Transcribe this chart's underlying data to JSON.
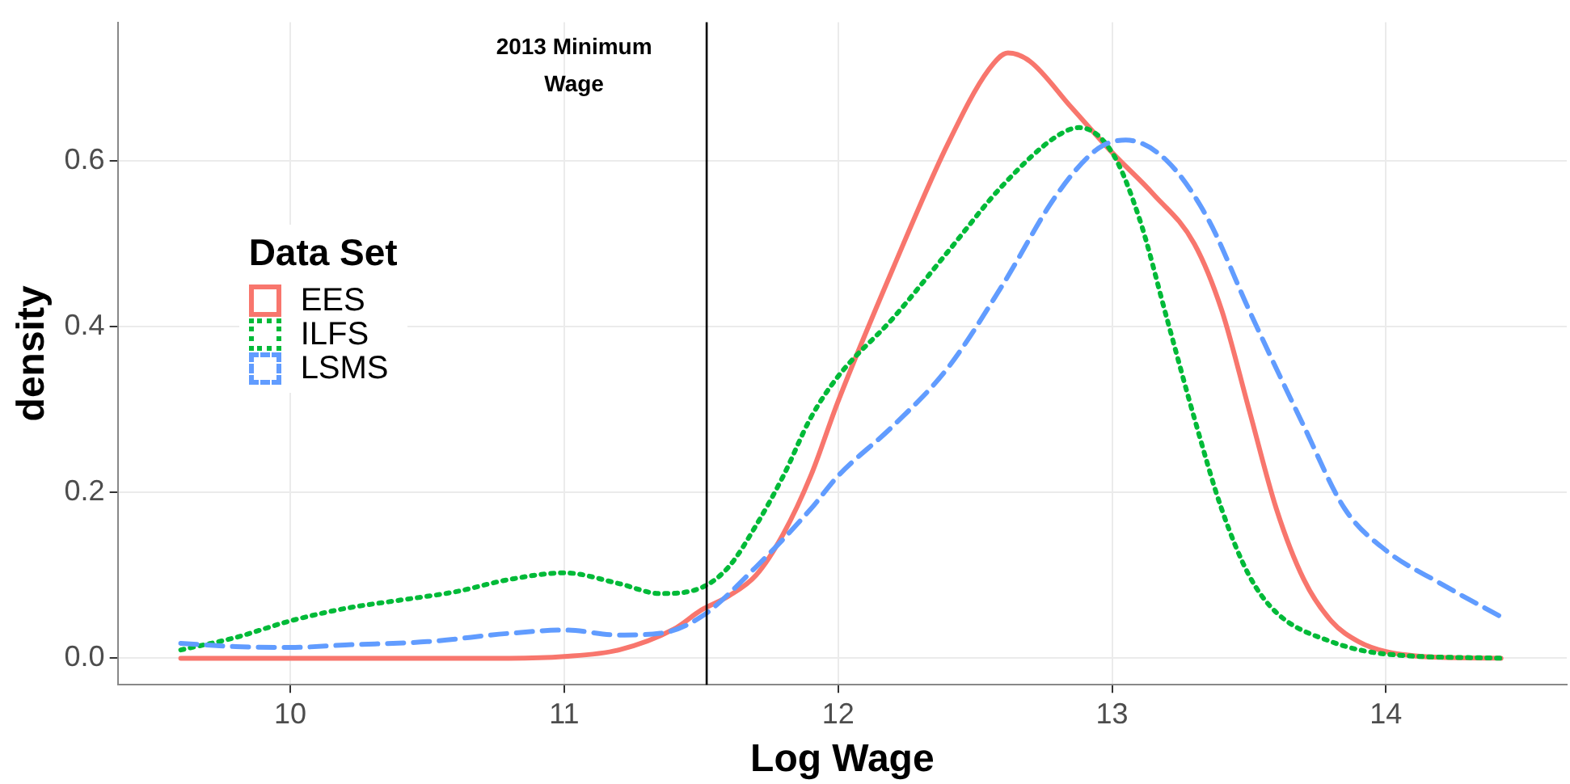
{
  "chart_data": {
    "type": "line",
    "xlabel": "Log Wage",
    "ylabel": "density",
    "legend_title": "Data Set",
    "legend": "left",
    "grid": true,
    "xlim": [
      9.37,
      14.66
    ],
    "ylim": [
      -0.032,
      0.767
    ],
    "xticks": [
      10,
      11,
      12,
      13,
      14
    ],
    "yticks": [
      {
        "value": 0,
        "label": "0.0"
      },
      {
        "value": 0.2,
        "label": "0.2"
      },
      {
        "value": 0.4,
        "label": "0.4"
      },
      {
        "value": 0.6,
        "label": "0.6"
      }
    ],
    "ref_lines": [
      {
        "axis": "x",
        "value": 11.52,
        "label": "2013 Minimum Wage",
        "color": "#000000",
        "line_style": "solid"
      }
    ],
    "series": [
      {
        "name": "EES",
        "color": "#f8766d",
        "line_style": "solid",
        "x": [
          9.6,
          10.0,
          10.4,
          10.8,
          11.0,
          11.2,
          11.4,
          11.5,
          11.6,
          11.7,
          11.8,
          11.9,
          12.0,
          12.2,
          12.4,
          12.55,
          12.62,
          12.7,
          12.85,
          13.0,
          13.15,
          13.3,
          13.4,
          13.5,
          13.6,
          13.7,
          13.8,
          13.9,
          14.0,
          14.2,
          14.42
        ],
        "values": [
          0,
          0,
          0,
          0,
          0.002,
          0.01,
          0.035,
          0.058,
          0.075,
          0.1,
          0.15,
          0.22,
          0.31,
          0.47,
          0.62,
          0.71,
          0.73,
          0.72,
          0.665,
          0.61,
          0.56,
          0.5,
          0.42,
          0.3,
          0.18,
          0.095,
          0.045,
          0.02,
          0.008,
          0.001,
          0
        ]
      },
      {
        "name": "ILFS",
        "color": "#00ba38",
        "line_style": "dotted",
        "x": [
          9.6,
          9.8,
          10.0,
          10.2,
          10.4,
          10.6,
          10.8,
          11.0,
          11.2,
          11.35,
          11.5,
          11.6,
          11.7,
          11.8,
          11.9,
          12.0,
          12.2,
          12.4,
          12.6,
          12.8,
          12.88,
          13.0,
          13.1,
          13.2,
          13.3,
          13.4,
          13.5,
          13.6,
          13.8,
          14.0,
          14.42
        ],
        "values": [
          0.01,
          0.025,
          0.045,
          0.06,
          0.07,
          0.08,
          0.095,
          0.103,
          0.09,
          0.078,
          0.085,
          0.11,
          0.16,
          0.22,
          0.29,
          0.34,
          0.41,
          0.49,
          0.57,
          0.63,
          0.64,
          0.61,
          0.53,
          0.41,
          0.29,
          0.18,
          0.1,
          0.055,
          0.02,
          0.005,
          0
        ]
      },
      {
        "name": "LSMS",
        "color": "#619cff",
        "line_style": "dashed",
        "x": [
          9.6,
          9.8,
          10.0,
          10.2,
          10.5,
          10.8,
          11.0,
          11.2,
          11.35,
          11.5,
          11.7,
          11.9,
          12.0,
          12.2,
          12.4,
          12.6,
          12.8,
          12.95,
          13.05,
          13.2,
          13.35,
          13.5,
          13.7,
          13.85,
          14.0,
          14.2,
          14.42
        ],
        "values": [
          0.018,
          0.014,
          0.013,
          0.016,
          0.02,
          0.03,
          0.034,
          0.028,
          0.03,
          0.05,
          0.11,
          0.18,
          0.22,
          0.28,
          0.35,
          0.45,
          0.56,
          0.615,
          0.625,
          0.6,
          0.53,
          0.42,
          0.28,
          0.18,
          0.13,
          0.09,
          0.05
        ]
      }
    ]
  }
}
